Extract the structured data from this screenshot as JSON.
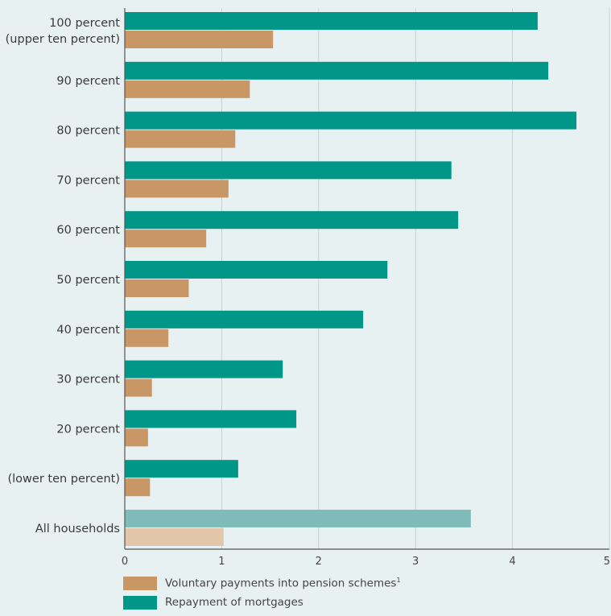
{
  "chart_data": {
    "type": "bar",
    "orientation": "horizontal",
    "categories": [
      "100 percent\n(upper ten percent)",
      "90 percent",
      "80 percent",
      "70 percent",
      "60 percent",
      "50 percent",
      "40 percent",
      "30 percent",
      "20 percent",
      "(lower ten percent)",
      "All households"
    ],
    "series": [
      {
        "name": "Repayment of mortgages",
        "color": "#009688",
        "highlight_color": "#7fbbb8",
        "values": [
          4.26,
          4.37,
          4.66,
          3.37,
          3.44,
          2.71,
          2.46,
          1.63,
          1.77,
          1.17,
          3.57
        ]
      },
      {
        "name": "Voluntary payments into pension schemes",
        "footnote_marker": "1",
        "color": "#c99766",
        "highlight_color": "#e3c6aa",
        "values": [
          1.53,
          1.29,
          1.14,
          1.07,
          0.84,
          0.66,
          0.45,
          0.28,
          0.24,
          0.26,
          1.02
        ]
      }
    ],
    "highlight_category": "All households",
    "xlim": [
      0,
      5
    ],
    "xticks": [
      "0",
      "1",
      "2",
      "3",
      "4",
      "5"
    ],
    "grid": true,
    "legend_position": "bottom-left",
    "legend_order": [
      1,
      0
    ]
  }
}
